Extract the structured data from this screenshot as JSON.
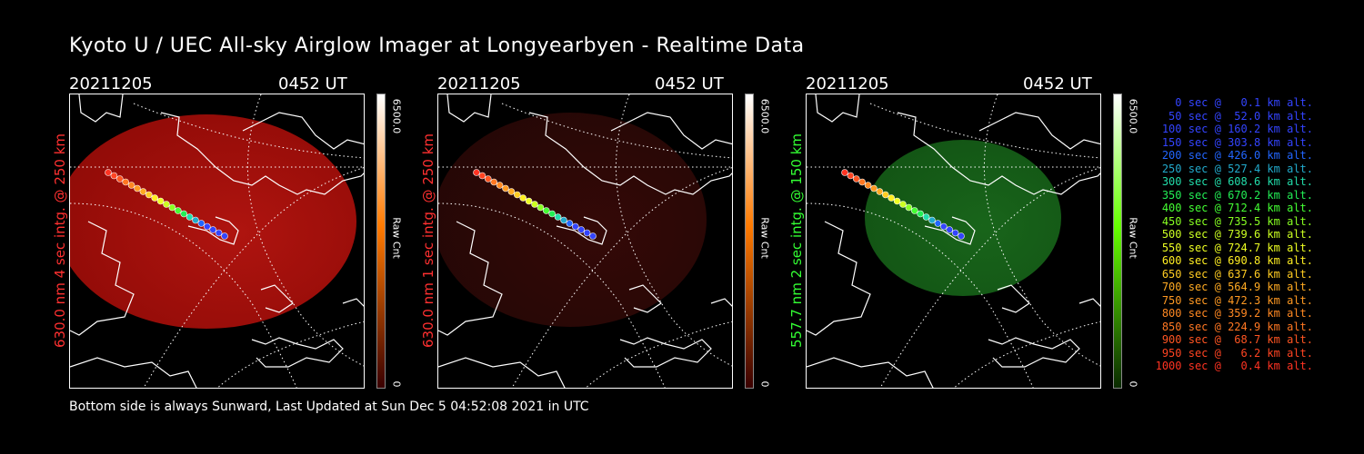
{
  "title": "Kyoto U / UEC All-sky Airglow Imager at Longyearbyen - Realtime Data",
  "footer": "Bottom side is always Sunward, Last Updated at Sun Dec  5 04:52:08 2021 in UTC",
  "panels": [
    {
      "date": "20211205",
      "time": "0452 UT",
      "ylabel": "630.0 nm 4 sec intg. @ 250 km",
      "label_color": "#ff3030",
      "colorbar": {
        "max_label": "6500.0",
        "min_label": "0",
        "unit_label": "Raw Cnt",
        "top_color": "#ffffff",
        "mid_color": "#ff7a00",
        "bottom_color": "#3a0000"
      }
    },
    {
      "date": "20211205",
      "time": "0452 UT",
      "ylabel": "630.0 nm 1 sec intg. @ 250 km",
      "label_color": "#ff3030",
      "colorbar": {
        "max_label": "6500.0",
        "min_label": "0",
        "unit_label": "Raw Cnt",
        "top_color": "#ffffff",
        "mid_color": "#ff7a00",
        "bottom_color": "#3a0000"
      }
    },
    {
      "date": "20211205",
      "time": "0452 UT",
      "ylabel": "557.7 nm 2 sec intg. @ 150 km",
      "label_color": "#33ff33",
      "colorbar": {
        "max_label": "6500.0",
        "min_label": "0",
        "unit_label": "Raw Cnt",
        "top_color": "#ffffff",
        "mid_color": "#66ff00",
        "bottom_color": "#0a2a00"
      }
    }
  ],
  "legend": [
    {
      "text": "0 sec @   0.1 km alt.",
      "color": "#3344ff"
    },
    {
      "text": "50 sec @  52.0 km alt.",
      "color": "#3344ff"
    },
    {
      "text": "100 sec @ 160.2 km alt.",
      "color": "#3344ff"
    },
    {
      "text": "150 sec @ 303.8 km alt.",
      "color": "#3344ff"
    },
    {
      "text": "200 sec @ 426.0 km alt.",
      "color": "#2266ff"
    },
    {
      "text": "250 sec @ 527.4 km alt.",
      "color": "#22aacc"
    },
    {
      "text": "300 sec @ 608.6 km alt.",
      "color": "#22ddaa"
    },
    {
      "text": "350 sec @ 670.2 km alt.",
      "color": "#22ee55"
    },
    {
      "text": "400 sec @ 712.4 km alt.",
      "color": "#44ff33"
    },
    {
      "text": "450 sec @ 735.5 km alt.",
      "color": "#88ff22"
    },
    {
      "text": "500 sec @ 739.6 km alt.",
      "color": "#ccff22"
    },
    {
      "text": "550 sec @ 724.7 km alt.",
      "color": "#eeff22"
    },
    {
      "text": "600 sec @ 690.8 km alt.",
      "color": "#ffee22"
    },
    {
      "text": "650 sec @ 637.6 km alt.",
      "color": "#ffcc22"
    },
    {
      "text": "700 sec @ 564.9 km alt.",
      "color": "#ffaa22"
    },
    {
      "text": "750 sec @ 472.3 km alt.",
      "color": "#ff9922"
    },
    {
      "text": "800 sec @ 359.2 km alt.",
      "color": "#ff8822"
    },
    {
      "text": "850 sec @ 224.9 km alt.",
      "color": "#ff7722"
    },
    {
      "text": "900 sec @  68.7 km alt.",
      "color": "#ff5522"
    },
    {
      "text": "950 sec @   6.2 km alt.",
      "color": "#ff4422"
    },
    {
      "text": "1000 sec @   0.4 km alt.",
      "color": "#ff3322"
    }
  ]
}
